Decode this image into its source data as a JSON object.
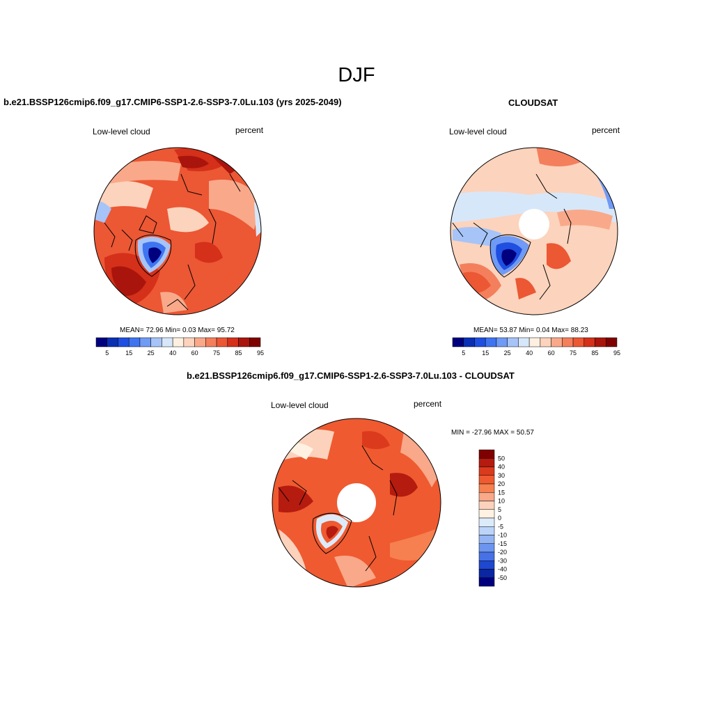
{
  "figure": {
    "title": "DJF"
  },
  "panels": {
    "model": {
      "title": "b.e21.BSSP126cmip6.f09_g17.CMIP6-SSP1-2.6-SSP3-7.0Lu.103 (yrs 2025-2049)",
      "left_label": "Low-level cloud",
      "right_label": "percent",
      "stats": "MEAN=  72.96  Min=    0.03  Max=  95.72",
      "colorbar_ticks": [
        "5",
        "15",
        "25",
        "40",
        "60",
        "75",
        "85",
        "95"
      ]
    },
    "obs": {
      "title": "CLOUDSAT",
      "left_label": "Low-level cloud",
      "right_label": "percent",
      "stats": "MEAN=  53.87  Min=    0.04  Max=  88.23",
      "colorbar_ticks": [
        "5",
        "15",
        "25",
        "40",
        "60",
        "75",
        "85",
        "95"
      ]
    },
    "diff": {
      "title": "b.e21.BSSP126cmip6.f09_g17.CMIP6-SSP1-2.6-SSP3-7.0Lu.103 - CLOUDSAT",
      "left_label": "Low-level cloud",
      "right_label": "percent",
      "stats": "MIN = -27.96 MAX =  50.57",
      "colorbar_ticks": [
        "50",
        "40",
        "30",
        "20",
        "15",
        "10",
        "5",
        "0",
        "-5",
        "-10",
        "-15",
        "-20",
        "-30",
        "-40",
        "-50"
      ]
    }
  },
  "colors": {
    "abs_scale": [
      "#00007f",
      "#0a2fb3",
      "#1f4fe0",
      "#3f74f0",
      "#6f9af5",
      "#a6c4f7",
      "#d7e7fa",
      "#fdf0e0",
      "#fcd3bc",
      "#f9a98a",
      "#f47f5c",
      "#ec5734",
      "#d4301a",
      "#a9150c",
      "#7f0000"
    ],
    "diff_scale": [
      "#7f0000",
      "#b51b0f",
      "#dc3a1c",
      "#ef5a30",
      "#f6804f",
      "#f9a889",
      "#fcd2bc",
      "#fff2e2",
      "#dcebfa",
      "#bcd4f7",
      "#93b5f3",
      "#6c95ef",
      "#4672e6",
      "#1f48d0",
      "#0a26a3",
      "#00007f"
    ]
  }
}
